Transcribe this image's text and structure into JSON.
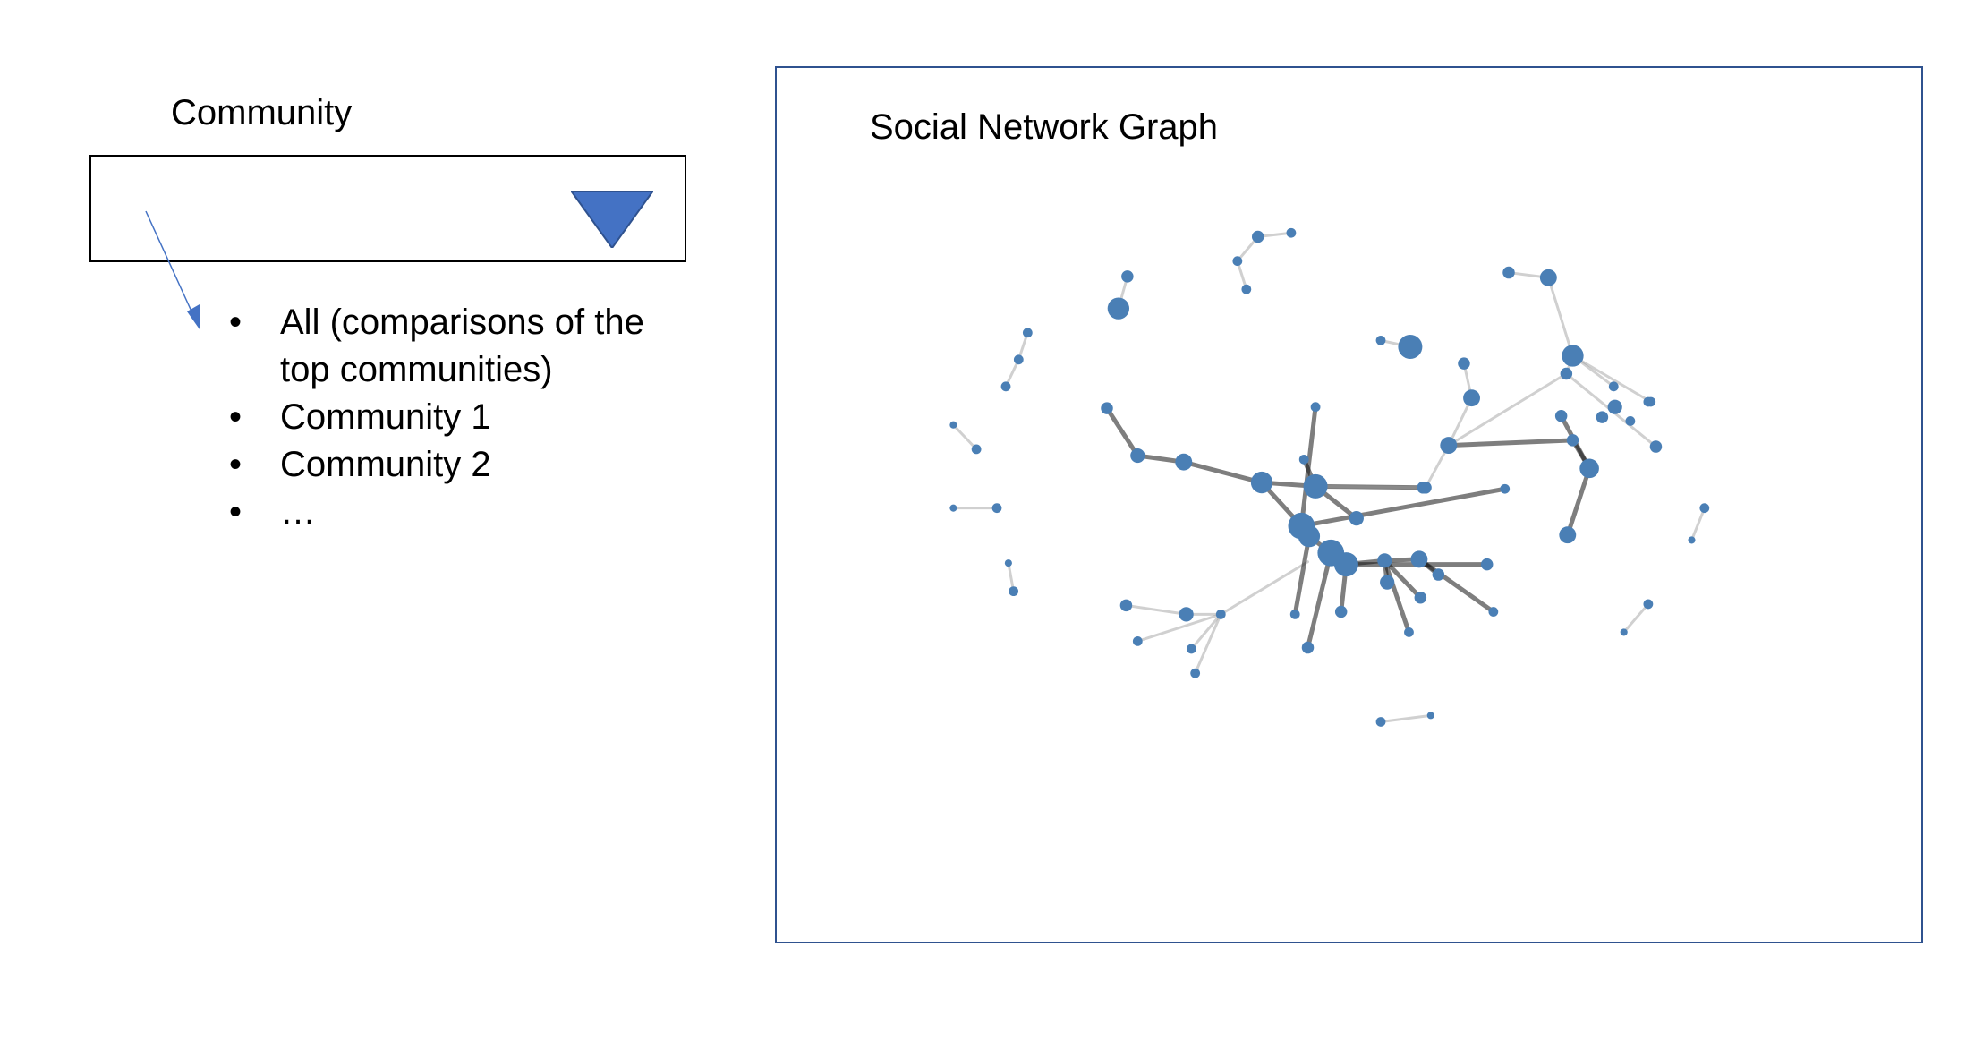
{
  "filter": {
    "label": "Community",
    "selected": "",
    "options": [
      "All (comparisons of the top communities)",
      "Community 1",
      "Community 2",
      "…"
    ],
    "bullet": "•"
  },
  "graph": {
    "title": "Social Network Graph",
    "node_color": "#4a7fb5",
    "accent_color": "#4472c4"
  }
}
